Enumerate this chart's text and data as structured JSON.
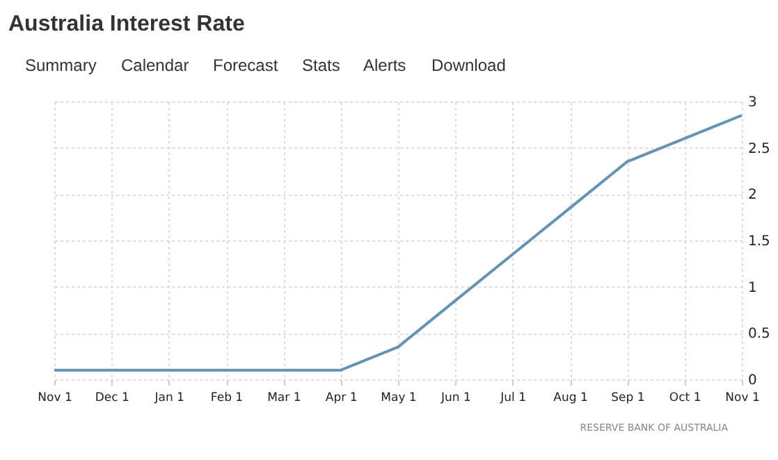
{
  "chart_data": {
    "type": "line",
    "title": "Australia Interest Rate",
    "annotations": [
      "Summary",
      "Calendar",
      "Forecast",
      "Stats",
      "Alerts",
      "Download",
      "RESERVE BANK OF AUSTRALIA"
    ],
    "categories": [
      "Nov 1",
      "Dec 1",
      "Jan 1",
      "Feb 1",
      "Mar 1",
      "Apr 1",
      "May 1",
      "Jun 1",
      "Jul 1",
      "Aug 1",
      "Sep 1",
      "Oct 1",
      "Nov 1"
    ],
    "series": [
      {
        "color": "#6593b3",
        "values": [
          0.1,
          0.1,
          0.1,
          0.1,
          0.1,
          0.1,
          0.35,
          0.85,
          1.35,
          1.85,
          2.35,
          2.6,
          2.85
        ]
      }
    ],
    "ylim": [
      0,
      3
    ],
    "yticks": [
      0,
      0.5,
      1,
      1.5,
      2,
      2.5,
      3
    ],
    "grid": true,
    "marker": "none",
    "line_style": "solid"
  }
}
